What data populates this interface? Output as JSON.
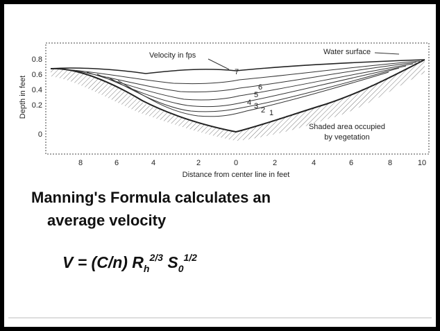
{
  "figure": {
    "y_axis_label": "Depth in feet",
    "y_ticks": [
      "0.8",
      "0.6",
      "0.4",
      "0.2",
      "0"
    ],
    "x_axis_label": "Distance from center line in feet",
    "x_ticks": [
      "8",
      "6",
      "4",
      "2",
      "0",
      "2",
      "4",
      "6",
      "8",
      "10"
    ],
    "annotations": {
      "velocity": "Velocity in fps",
      "water_surface": "Water surface",
      "shaded_1": "Shaded area occupied",
      "shaded_2": "by vegetation"
    },
    "contour_labels": [
      "7",
      "6",
      "5",
      "4",
      "3",
      "2",
      "1"
    ]
  },
  "heading": {
    "line_1": "Manning's Formula calculates an",
    "line_2": "average velocity"
  },
  "formula": {
    "main": "V = (C/n) R",
    "r_sub": "h",
    "r_sup": "2/3",
    "s": " S",
    "s_sub": "0",
    "s_sup": "1/2"
  }
}
